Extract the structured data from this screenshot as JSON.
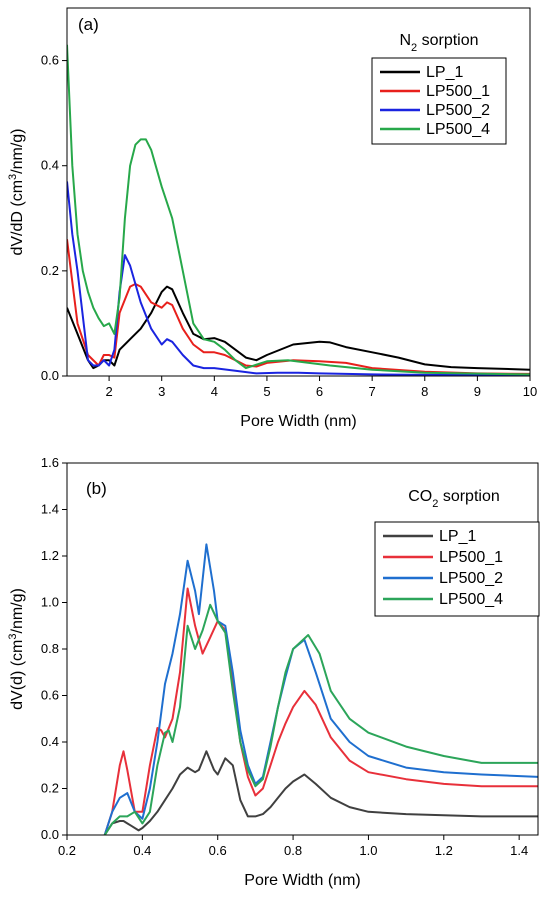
{
  "chart_data": [
    {
      "type": "line",
      "panel_label": "(a)",
      "annotation": "N2 sorption",
      "xlabel": "Pore Width (nm)",
      "ylabel": "dV/dD (cm3/nm/g)",
      "xlim": [
        1.2,
        10
      ],
      "ylim": [
        0,
        0.7
      ],
      "xticks": [
        2,
        3,
        4,
        5,
        6,
        7,
        8,
        9,
        10
      ],
      "yticks": [
        0.0,
        0.2,
        0.4,
        0.6
      ],
      "xtick_labels": [
        "2",
        "3",
        "4",
        "5",
        "6",
        "7",
        "8",
        "9",
        "10"
      ],
      "ytick_labels": [
        "0.0",
        "0.2",
        "0.4",
        "0.6"
      ],
      "legend_position": "top-right",
      "series": [
        {
          "name": "LP_1",
          "color": "#000000",
          "x": [
            1.2,
            1.4,
            1.6,
            1.7,
            1.8,
            1.9,
            2.0,
            2.1,
            2.2,
            2.4,
            2.6,
            2.8,
            3.0,
            3.1,
            3.2,
            3.4,
            3.6,
            3.8,
            4.0,
            4.2,
            4.4,
            4.6,
            4.8,
            5.0,
            5.5,
            6.0,
            6.2,
            6.5,
            7.0,
            7.5,
            8.0,
            8.5,
            9.0,
            10.0
          ],
          "y": [
            0.13,
            0.08,
            0.03,
            0.015,
            0.02,
            0.03,
            0.03,
            0.02,
            0.05,
            0.07,
            0.09,
            0.12,
            0.16,
            0.17,
            0.165,
            0.12,
            0.08,
            0.07,
            0.072,
            0.065,
            0.05,
            0.035,
            0.03,
            0.04,
            0.06,
            0.065,
            0.064,
            0.055,
            0.045,
            0.035,
            0.022,
            0.017,
            0.015,
            0.012
          ]
        },
        {
          "name": "LP500_1",
          "color": "#e8201c",
          "x": [
            1.2,
            1.4,
            1.6,
            1.8,
            1.9,
            2.0,
            2.1,
            2.2,
            2.4,
            2.5,
            2.6,
            2.8,
            3.0,
            3.1,
            3.2,
            3.4,
            3.6,
            3.8,
            4.0,
            4.2,
            4.4,
            4.6,
            4.8,
            5.0,
            5.5,
            6.0,
            6.5,
            7.0,
            8.0,
            9.0,
            10.0
          ],
          "y": [
            0.26,
            0.1,
            0.04,
            0.02,
            0.04,
            0.04,
            0.035,
            0.12,
            0.17,
            0.175,
            0.17,
            0.14,
            0.13,
            0.14,
            0.135,
            0.09,
            0.06,
            0.045,
            0.045,
            0.04,
            0.03,
            0.02,
            0.018,
            0.025,
            0.03,
            0.028,
            0.025,
            0.015,
            0.008,
            0.005,
            0.004
          ]
        },
        {
          "name": "LP500_2",
          "color": "#1a24e0",
          "x": [
            1.2,
            1.3,
            1.4,
            1.6,
            1.7,
            1.8,
            1.9,
            2.0,
            2.1,
            2.2,
            2.3,
            2.4,
            2.6,
            2.8,
            3.0,
            3.1,
            3.2,
            3.4,
            3.6,
            3.8,
            4.0,
            4.4,
            4.8,
            5.2,
            5.6,
            6.0,
            6.5,
            7.0,
            8.0,
            9.0,
            10.0
          ],
          "y": [
            0.37,
            0.27,
            0.2,
            0.03,
            0.02,
            0.02,
            0.03,
            0.02,
            0.05,
            0.16,
            0.23,
            0.21,
            0.14,
            0.09,
            0.06,
            0.07,
            0.065,
            0.04,
            0.02,
            0.015,
            0.015,
            0.01,
            0.005,
            0.006,
            0.006,
            0.005,
            0.004,
            0.003,
            0.002,
            0.002,
            0.002
          ]
        },
        {
          "name": "LP500_4",
          "color": "#27a84a",
          "x": [
            1.2,
            1.3,
            1.4,
            1.5,
            1.6,
            1.7,
            1.8,
            1.9,
            2.0,
            2.1,
            2.2,
            2.3,
            2.4,
            2.5,
            2.6,
            2.7,
            2.8,
            3.0,
            3.2,
            3.4,
            3.6,
            3.8,
            4.0,
            4.2,
            4.4,
            4.6,
            5.0,
            5.4,
            5.8,
            6.2,
            7.0,
            8.0,
            10.0
          ],
          "y": [
            0.63,
            0.4,
            0.27,
            0.2,
            0.16,
            0.13,
            0.11,
            0.095,
            0.1,
            0.08,
            0.15,
            0.3,
            0.4,
            0.44,
            0.45,
            0.45,
            0.43,
            0.36,
            0.3,
            0.2,
            0.1,
            0.07,
            0.065,
            0.05,
            0.03,
            0.015,
            0.028,
            0.03,
            0.025,
            0.02,
            0.012,
            0.006,
            0.003
          ]
        }
      ]
    },
    {
      "type": "line",
      "panel_label": "(b)",
      "annotation": "CO2 sorption",
      "xlabel": "Pore Width (nm)",
      "ylabel": "dV(d) (cm3/nm/g)",
      "xlim": [
        0.2,
        1.45
      ],
      "ylim": [
        0,
        1.6
      ],
      "xticks": [
        0.2,
        0.4,
        0.6,
        0.8,
        1.0,
        1.2,
        1.4
      ],
      "yticks": [
        0.0,
        0.2,
        0.4,
        0.6,
        0.8,
        1.0,
        1.2,
        1.4,
        1.6
      ],
      "xtick_labels": [
        "0.2",
        "0.4",
        "0.6",
        "0.8",
        "1.0",
        "1.2",
        "1.4"
      ],
      "ytick_labels": [
        "0.0",
        "0.2",
        "0.4",
        "0.6",
        "0.8",
        "1.0",
        "1.2",
        "1.4",
        "1.6"
      ],
      "legend_position": "top-right",
      "series": [
        {
          "name": "LP_1",
          "color": "#404040",
          "x": [
            0.3,
            0.32,
            0.34,
            0.35,
            0.37,
            0.39,
            0.4,
            0.42,
            0.44,
            0.46,
            0.48,
            0.5,
            0.52,
            0.54,
            0.55,
            0.57,
            0.59,
            0.6,
            0.62,
            0.64,
            0.66,
            0.68,
            0.7,
            0.72,
            0.74,
            0.76,
            0.78,
            0.8,
            0.83,
            0.86,
            0.9,
            0.95,
            1.0,
            1.1,
            1.2,
            1.3,
            1.45
          ],
          "y": [
            0.0,
            0.05,
            0.06,
            0.06,
            0.04,
            0.02,
            0.03,
            0.06,
            0.1,
            0.15,
            0.2,
            0.26,
            0.29,
            0.27,
            0.28,
            0.36,
            0.28,
            0.26,
            0.33,
            0.3,
            0.15,
            0.08,
            0.08,
            0.09,
            0.12,
            0.16,
            0.2,
            0.23,
            0.26,
            0.22,
            0.16,
            0.12,
            0.1,
            0.09,
            0.085,
            0.08,
            0.08
          ]
        },
        {
          "name": "LP500_1",
          "color": "#e8303a",
          "x": [
            0.3,
            0.32,
            0.34,
            0.35,
            0.36,
            0.38,
            0.4,
            0.42,
            0.44,
            0.45,
            0.46,
            0.48,
            0.5,
            0.52,
            0.54,
            0.56,
            0.58,
            0.6,
            0.62,
            0.64,
            0.66,
            0.68,
            0.7,
            0.72,
            0.74,
            0.76,
            0.78,
            0.8,
            0.83,
            0.86,
            0.9,
            0.95,
            1.0,
            1.1,
            1.2,
            1.3,
            1.45
          ],
          "y": [
            0.0,
            0.1,
            0.3,
            0.36,
            0.28,
            0.1,
            0.1,
            0.3,
            0.46,
            0.45,
            0.42,
            0.5,
            0.7,
            1.06,
            0.9,
            0.78,
            0.85,
            0.92,
            0.88,
            0.65,
            0.4,
            0.25,
            0.17,
            0.2,
            0.3,
            0.4,
            0.48,
            0.55,
            0.62,
            0.56,
            0.42,
            0.32,
            0.27,
            0.24,
            0.22,
            0.21,
            0.21
          ]
        },
        {
          "name": "LP500_2",
          "color": "#1f6fcf",
          "x": [
            0.3,
            0.32,
            0.34,
            0.36,
            0.38,
            0.4,
            0.42,
            0.44,
            0.46,
            0.48,
            0.5,
            0.52,
            0.54,
            0.55,
            0.57,
            0.59,
            0.6,
            0.62,
            0.64,
            0.66,
            0.68,
            0.7,
            0.72,
            0.74,
            0.76,
            0.78,
            0.8,
            0.83,
            0.86,
            0.9,
            0.95,
            1.0,
            1.1,
            1.2,
            1.3,
            1.45
          ],
          "y": [
            0.0,
            0.1,
            0.16,
            0.18,
            0.1,
            0.07,
            0.2,
            0.4,
            0.65,
            0.78,
            0.95,
            1.18,
            1.05,
            0.95,
            1.25,
            1.05,
            0.92,
            0.9,
            0.7,
            0.45,
            0.3,
            0.22,
            0.25,
            0.4,
            0.55,
            0.68,
            0.8,
            0.84,
            0.7,
            0.5,
            0.4,
            0.34,
            0.29,
            0.27,
            0.26,
            0.25
          ]
        },
        {
          "name": "LP500_4",
          "color": "#2ca55a",
          "x": [
            0.3,
            0.32,
            0.34,
            0.36,
            0.38,
            0.4,
            0.42,
            0.44,
            0.46,
            0.47,
            0.48,
            0.5,
            0.52,
            0.54,
            0.56,
            0.58,
            0.6,
            0.62,
            0.64,
            0.66,
            0.68,
            0.7,
            0.72,
            0.74,
            0.76,
            0.78,
            0.8,
            0.84,
            0.87,
            0.9,
            0.95,
            1.0,
            1.1,
            1.2,
            1.3,
            1.45
          ],
          "y": [
            0.0,
            0.05,
            0.08,
            0.08,
            0.1,
            0.05,
            0.1,
            0.3,
            0.44,
            0.45,
            0.4,
            0.55,
            0.9,
            0.8,
            0.88,
            0.99,
            0.92,
            0.87,
            0.62,
            0.4,
            0.28,
            0.21,
            0.24,
            0.38,
            0.55,
            0.7,
            0.8,
            0.86,
            0.78,
            0.62,
            0.5,
            0.44,
            0.38,
            0.34,
            0.31,
            0.31
          ]
        }
      ]
    }
  ]
}
